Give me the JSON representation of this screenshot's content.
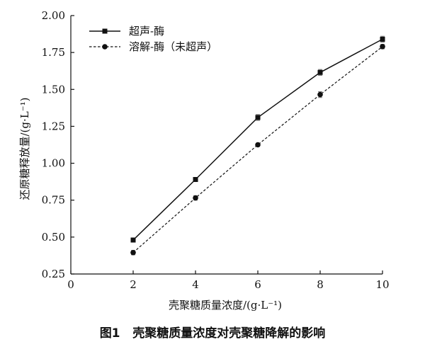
{
  "chart_data": {
    "type": "line",
    "x": [
      2,
      4,
      6,
      8,
      10
    ],
    "series": [
      {
        "name": "超声-酶",
        "values": [
          0.48,
          0.89,
          1.31,
          1.615,
          1.84
        ],
        "errors": [
          0.01,
          0.01,
          0.02,
          0.02,
          0.02
        ],
        "marker": "square",
        "line": "solid"
      },
      {
        "name": "溶解-酶（未超声）",
        "values": [
          0.395,
          0.765,
          1.125,
          1.465,
          1.79
        ],
        "errors": [
          0.015,
          0.015,
          0.01,
          0.02,
          0.015
        ],
        "marker": "circle",
        "line": "dashed"
      }
    ],
    "xlabel": "壳聚糖质量浓度/(g·L⁻¹)",
    "ylabel": "还原糖释放量/(g·L⁻¹)",
    "xlim": [
      0,
      10
    ],
    "ylim": [
      0.25,
      2.0
    ],
    "x_ticks": [
      0,
      2,
      4,
      6,
      8,
      10
    ],
    "y_ticks": [
      "0.25",
      "0.50",
      "0.75",
      "1.00",
      "1.25",
      "1.50",
      "1.75",
      "2.00"
    ],
    "grid": false,
    "legend_position": "top-left"
  },
  "caption": {
    "number": "图1",
    "text": "壳聚糖质量浓度对壳聚糖降解的影响"
  }
}
